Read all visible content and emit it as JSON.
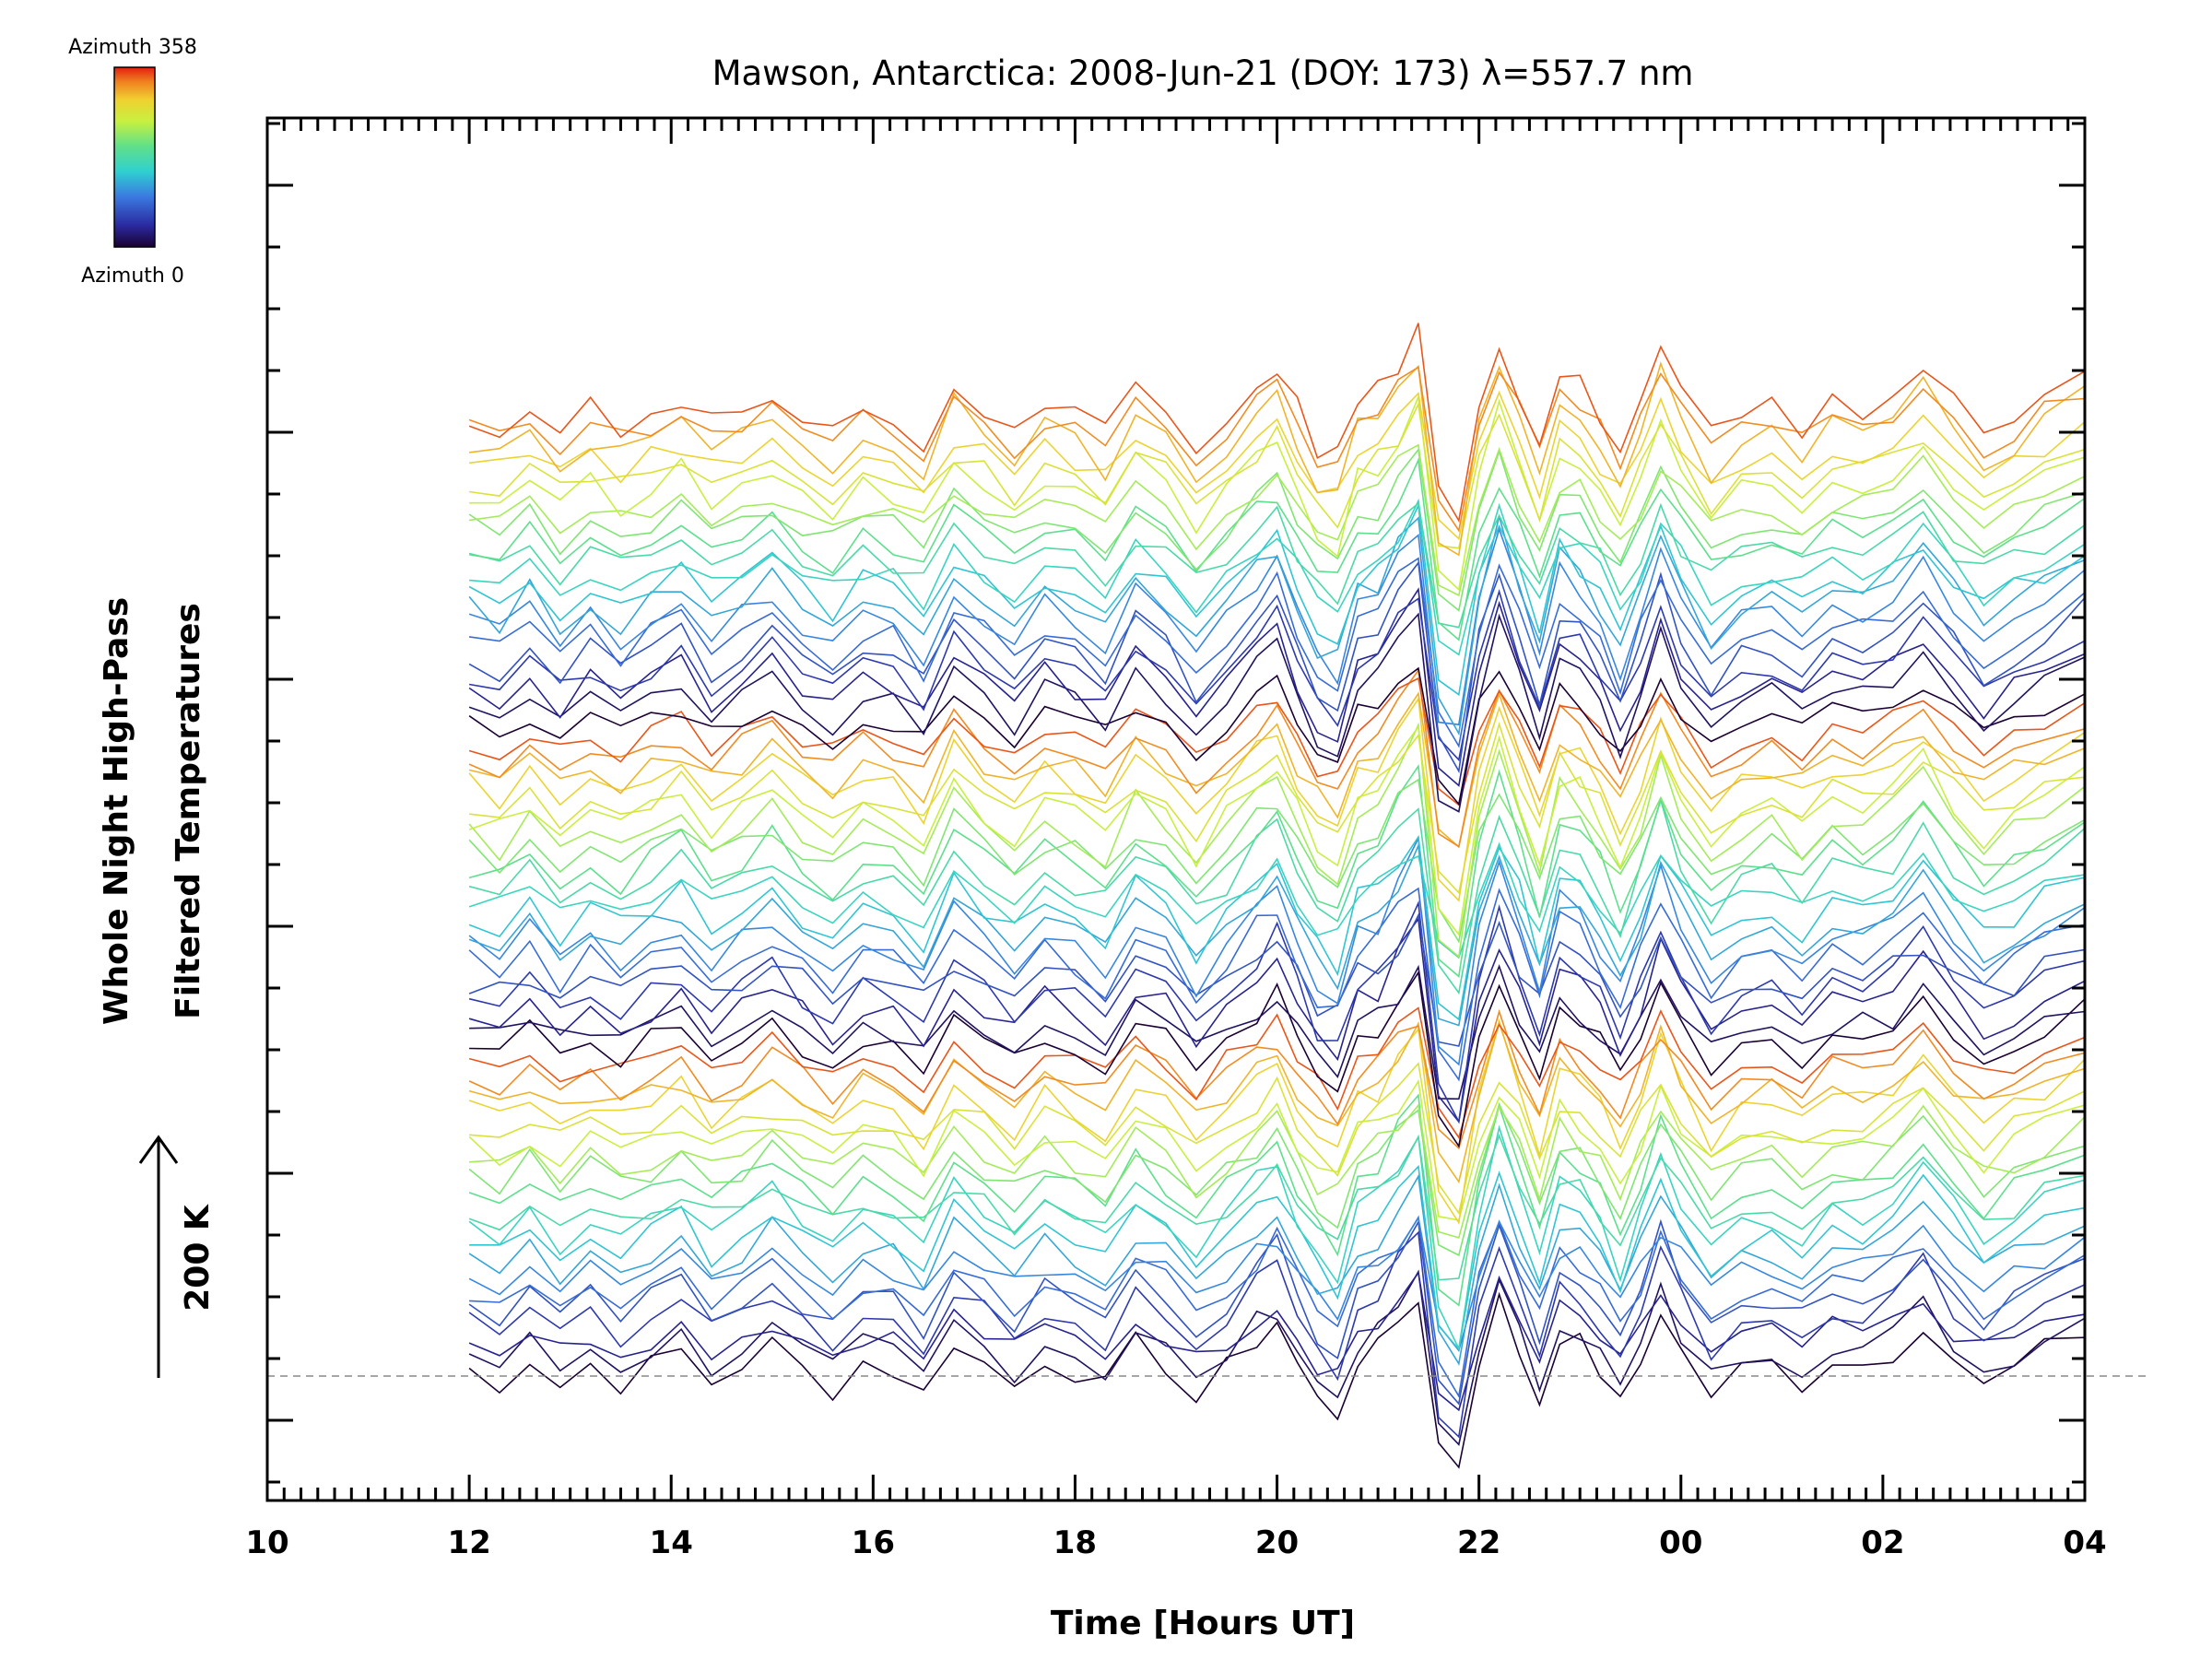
{
  "chart_data": {
    "type": "line",
    "title": "Mawson, Antarctica: 2008-Jun-21 (DOY: 173) λ=557.7 nm",
    "xlabel": "Time [Hours UT]",
    "ylabel_line1": "Whole Night High-Pass",
    "ylabel_line2": "Filtered Temperatures",
    "x_tick_labels": [
      "10",
      "12",
      "14",
      "16",
      "18",
      "20",
      "22",
      "00",
      "02",
      "04"
    ],
    "x_tick_hours": [
      10,
      12,
      14,
      16,
      18,
      20,
      22,
      24,
      26,
      28
    ],
    "xlim": [
      10,
      28
    ],
    "data_xlim": [
      12,
      28
    ],
    "scale_bar_label": "200 K",
    "colorbar": {
      "top_label": "Azimuth  358",
      "bottom_label": "Azimuth  0",
      "min": 0,
      "max": 358
    },
    "baseline": "dashed",
    "series_count": 60,
    "sample_hours": [
      12.0,
      12.3,
      12.6,
      12.9,
      13.2,
      13.5,
      13.8,
      14.1,
      14.4,
      14.7,
      15.0,
      15.3,
      15.6,
      15.9,
      16.2,
      16.5,
      16.8,
      17.1,
      17.4,
      17.7,
      18.0,
      18.3,
      18.6,
      18.9,
      19.2,
      19.5,
      19.8,
      20.0,
      20.2,
      20.4,
      20.6,
      20.8,
      21.0,
      21.2,
      21.4,
      21.6,
      21.8,
      22.0,
      22.2,
      22.4,
      22.6,
      22.8,
      23.0,
      23.2,
      23.4,
      23.6,
      23.8,
      24.0,
      24.3,
      24.6,
      24.9,
      25.2,
      25.5,
      25.8,
      26.1,
      26.4,
      26.7,
      27.0,
      27.3,
      27.6,
      28.0
    ],
    "reference_profile_K": [
      5,
      -5,
      15,
      -8,
      10,
      -5,
      8,
      20,
      -5,
      10,
      25,
      5,
      -10,
      12,
      5,
      -15,
      30,
      10,
      -8,
      15,
      5,
      -10,
      25,
      10,
      -20,
      5,
      30,
      45,
      10,
      -20,
      -30,
      15,
      20,
      45,
      65,
      -55,
      -70,
      15,
      60,
      20,
      -20,
      35,
      25,
      5,
      -25,
      10,
      55,
      20,
      -15,
      5,
      10,
      -5,
      15,
      10,
      20,
      45,
      15,
      -10,
      5,
      20,
      35
    ],
    "azimuth_cycle_deg": [
      0,
      18,
      36,
      54,
      72,
      90,
      108,
      126,
      144,
      162,
      180,
      198,
      216,
      234,
      252,
      270,
      288,
      306,
      324,
      342
    ]
  }
}
